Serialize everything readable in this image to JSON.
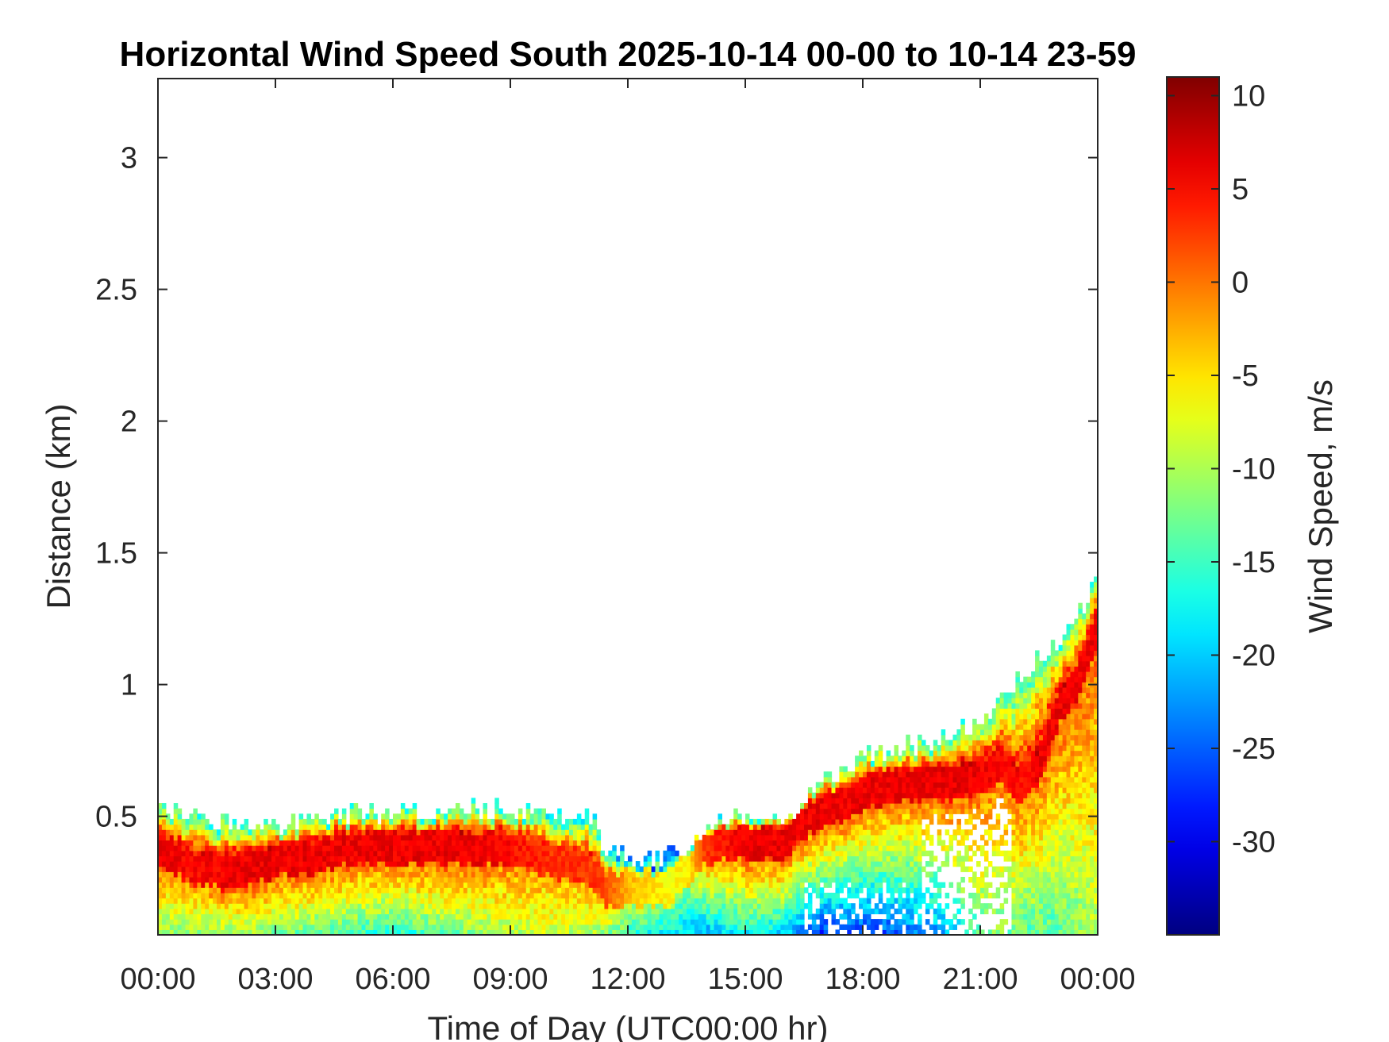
{
  "chart_data": {
    "type": "heatmap",
    "title": "Horizontal Wind Speed South 2025-10-14 00-00 to 10-14 23-59",
    "xlabel": "Time of Day (UTC00:00 hr)",
    "ylabel": "Distance (km)",
    "colorbar_label": "Wind Speed, m/s",
    "xlim": [
      0,
      24
    ],
    "ylim": [
      0.05,
      3.3
    ],
    "x_ticks": [
      0,
      3,
      6,
      9,
      12,
      15,
      18,
      21,
      24
    ],
    "x_tick_labels": [
      "00:00",
      "03:00",
      "06:00",
      "09:00",
      "12:00",
      "15:00",
      "18:00",
      "21:00",
      "00:00"
    ],
    "y_ticks": [
      0.5,
      1,
      1.5,
      2,
      2.5,
      3
    ],
    "y_tick_labels": [
      "0.5",
      "1",
      "1.5",
      "2",
      "2.5",
      "3"
    ],
    "clim": [
      -35,
      11
    ],
    "colorbar_ticks": [
      10,
      5,
      0,
      -5,
      -10,
      -15,
      -20,
      -25,
      -30
    ],
    "colorbar_tick_labels": [
      "10",
      "5",
      "0",
      "-5",
      "-10",
      "-15",
      "-20",
      "-25",
      "-30"
    ],
    "colormap": "jet",
    "grid": false,
    "approximate_profile": {
      "time_hr": [
        0,
        1,
        2,
        3,
        4,
        5,
        6,
        7,
        8,
        9,
        10,
        11,
        11.5,
        12,
        13,
        13.5,
        14,
        15,
        16,
        16.5,
        17,
        18,
        19,
        20,
        21,
        21.5,
        22,
        22.5,
        23,
        23.5,
        24
      ],
      "top_km": [
        0.52,
        0.48,
        0.46,
        0.45,
        0.48,
        0.5,
        0.5,
        0.5,
        0.52,
        0.52,
        0.5,
        0.5,
        0.35,
        0.33,
        0.33,
        0.35,
        0.45,
        0.48,
        0.48,
        0.55,
        0.62,
        0.72,
        0.75,
        0.78,
        0.85,
        0.95,
        1.0,
        1.1,
        1.15,
        1.25,
        1.4
      ],
      "jet_km": [
        0.38,
        0.3,
        0.28,
        0.33,
        0.35,
        0.38,
        0.38,
        0.38,
        0.38,
        0.38,
        0.33,
        0.3,
        0.22,
        0.22,
        0.22,
        0.3,
        0.38,
        0.4,
        0.4,
        0.48,
        0.52,
        0.58,
        0.62,
        0.62,
        0.65,
        0.7,
        0.6,
        0.7,
        0.9,
        1.0,
        1.2
      ],
      "jet_speed": [
        6,
        5,
        6,
        6,
        6,
        6,
        6,
        6,
        6,
        5,
        3,
        3,
        2,
        -3,
        -6,
        -6,
        3,
        6,
        6,
        6,
        6,
        6,
        6,
        6,
        6,
        5,
        5,
        6,
        6,
        6,
        6
      ],
      "surface_speed": [
        -12,
        -12,
        -11,
        -12,
        -14,
        -15,
        -17,
        -14,
        -12,
        -10,
        -9,
        -10,
        -12,
        -16,
        -18,
        -20,
        -22,
        -18,
        -20,
        -25,
        -27,
        -27,
        -25,
        -22,
        -14,
        -12,
        -14,
        -14,
        -14,
        -12,
        -10
      ]
    }
  }
}
